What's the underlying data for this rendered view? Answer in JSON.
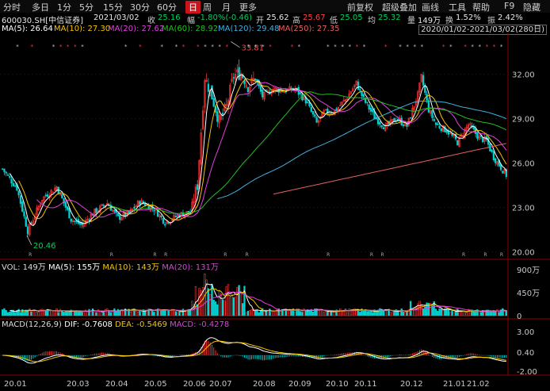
{
  "toolbar": {
    "left": [
      "分时",
      "多日",
      "1分",
      "5分",
      "15分",
      "30分",
      "60分",
      "日",
      "周",
      "月",
      "更多"
    ],
    "active": "日",
    "right": [
      "前复权",
      "超级叠加",
      "画线",
      "工具",
      "帮助",
      "F9",
      "隐藏"
    ]
  },
  "info": {
    "code": "600030.SH[中信证券]",
    "date": "2021/03/02",
    "close_label": "收",
    "close": "25.16",
    "range_label": "幅",
    "range": "-1.80%(-0.46)",
    "open_label": "开",
    "open": "25.62",
    "high_label": "高",
    "high": "25.67",
    "low_label": "低",
    "low": "25.05",
    "avg_label": "均",
    "avg": "25.32",
    "vol_label": "量",
    "vol": "149万",
    "turn_label": "换",
    "turn": "1.52%",
    "amp_label": "振",
    "amp": "2.42%"
  },
  "ma": {
    "ma5": "MA(5): 26.64",
    "ma10": "MA(10): 27.30",
    "ma20": "MA(20): 27.62",
    "ma60": "MA(60): 28.92",
    "ma120": "MA(120): 29.48",
    "ma250": "MA(250): 27.35"
  },
  "date_range": "2020/01/02-2021/03/02(280日)",
  "volume": {
    "vol": "VOL: 149万",
    "ma5": "MA(5): 155万",
    "ma10": "MA(10): 143万",
    "ma20": "MA(20): 131万"
  },
  "macd": {
    "title": "MACD(12,26,9)",
    "dif": "DIF: -0.7608",
    "dea": "DEA: -0.5469",
    "macd": "MACD: -0.4278"
  },
  "colors": {
    "up": "#ff3030",
    "down": "#00d0d0",
    "ma5": "#ffffff",
    "ma10": "#f5c400",
    "ma20": "#e040e0",
    "ma60": "#20c020",
    "ma120": "#40b0e0",
    "ma250": "#e06060",
    "grid": "#3a0000"
  },
  "chart_data": {
    "type": "candlestick",
    "price_ticks": [
      "32.00",
      "29.00",
      "26.00",
      "23.00",
      "20.00"
    ],
    "price_ylim": [
      19.6,
      34.6
    ],
    "max_label": "33.81",
    "min_label": "20.46",
    "volume_ticks": [
      "900万",
      "450万",
      "0"
    ],
    "macd_ticks": [
      "3.00",
      "0.40",
      "-2.00"
    ],
    "x_ticks": [
      "20.01",
      "20.03",
      "20.04",
      "20.05",
      "20.06",
      "20.07",
      "20.08",
      "20.09",
      "20.10",
      "20.11",
      "20.12",
      "21.01",
      "21.02"
    ],
    "anchors": [
      [
        0,
        25.6
      ],
      [
        8,
        24.3
      ],
      [
        14,
        21.4
      ],
      [
        22,
        23.6
      ],
      [
        30,
        24.4
      ],
      [
        38,
        22.2
      ],
      [
        44,
        21.8
      ],
      [
        50,
        22.6
      ],
      [
        58,
        23.3
      ],
      [
        64,
        22.3
      ],
      [
        70,
        22.6
      ],
      [
        76,
        23.4
      ],
      [
        84,
        22.9
      ],
      [
        90,
        22.0
      ],
      [
        98,
        22.5
      ],
      [
        104,
        22.7
      ],
      [
        108,
        24.5
      ],
      [
        112,
        31.8
      ],
      [
        116,
        30.5
      ],
      [
        120,
        28.8
      ],
      [
        124,
        29.8
      ],
      [
        128,
        31.9
      ],
      [
        132,
        32.1
      ],
      [
        136,
        31.2
      ],
      [
        140,
        31.7
      ],
      [
        144,
        30.5
      ],
      [
        150,
        31.0
      ],
      [
        156,
        30.9
      ],
      [
        162,
        31.0
      ],
      [
        168,
        30.2
      ],
      [
        174,
        28.7
      ],
      [
        178,
        29.4
      ],
      [
        184,
        29.5
      ],
      [
        190,
        30.3
      ],
      [
        196,
        31.4
      ],
      [
        200,
        30.3
      ],
      [
        206,
        29.1
      ],
      [
        212,
        28.4
      ],
      [
        218,
        29.0
      ],
      [
        224,
        28.5
      ],
      [
        230,
        30.6
      ],
      [
        232,
        31.8
      ],
      [
        236,
        29.6
      ],
      [
        240,
        28.6
      ],
      [
        246,
        28.2
      ],
      [
        252,
        27.4
      ],
      [
        258,
        28.6
      ],
      [
        264,
        27.7
      ],
      [
        268,
        27.5
      ],
      [
        272,
        26.4
      ],
      [
        276,
        25.7
      ],
      [
        279,
        25.2
      ]
    ]
  }
}
